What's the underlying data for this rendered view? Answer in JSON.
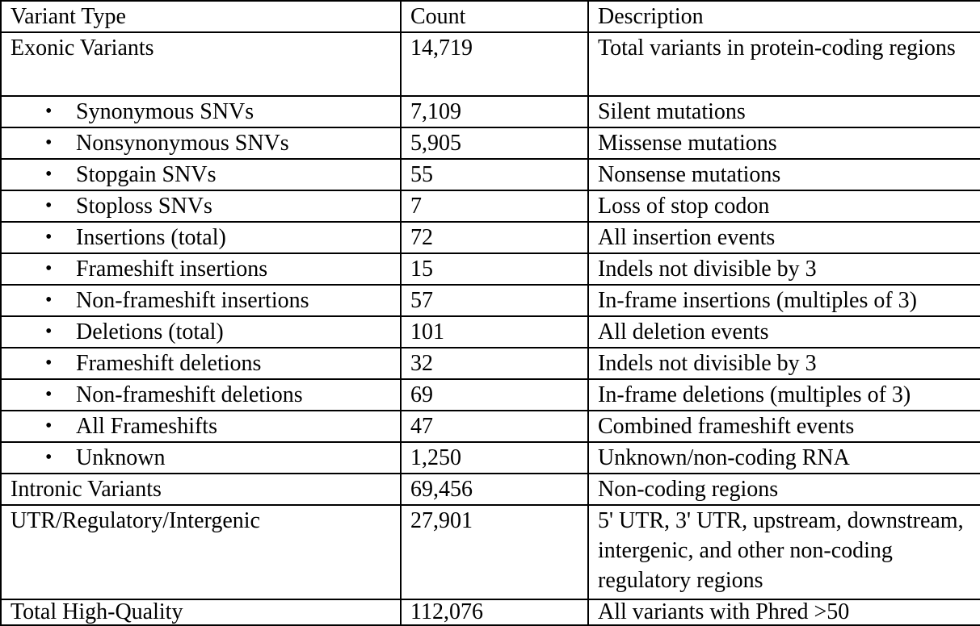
{
  "table": {
    "columns": [
      "Variant Type",
      "Count",
      "Description"
    ],
    "rows": [
      {
        "type": "Exonic Variants",
        "count": "14,719",
        "description": "Total variants in protein-coding\nregions",
        "bold": true,
        "bullet": false,
        "size": "tall"
      },
      {
        "type": "Synonymous SNVs",
        "count": "7,109",
        "description": "Silent mutations",
        "bold": false,
        "bullet": true,
        "size": "std"
      },
      {
        "type": "Nonsynonymous SNVs",
        "count": "5,905",
        "description": "Missense mutations",
        "bold": false,
        "bullet": true,
        "size": "std"
      },
      {
        "type": "Stopgain SNVs",
        "count": "55",
        "description": "Nonsense mutations",
        "bold": false,
        "bullet": true,
        "size": "std"
      },
      {
        "type": "Stoploss SNVs",
        "count": "7",
        "description": "Loss of stop codon",
        "bold": false,
        "bullet": true,
        "size": "std"
      },
      {
        "type": "Insertions (total)",
        "count": "72",
        "description": "All insertion events",
        "bold": true,
        "bullet": true,
        "size": "std"
      },
      {
        "type": "Frameshift insertions",
        "count": "15",
        "description": "Indels not divisible by 3",
        "bold": false,
        "bullet": true,
        "size": "std"
      },
      {
        "type": "Non-frameshift insertions",
        "count": "57",
        "description": "In-frame insertions (multiples of 3)",
        "bold": false,
        "bullet": true,
        "size": "std"
      },
      {
        "type": "Deletions (total)",
        "count": "101",
        "description": "All deletion events",
        "bold": true,
        "bullet": true,
        "size": "std"
      },
      {
        "type": "Frameshift deletions",
        "count": "32",
        "description": "Indels not divisible by 3",
        "bold": false,
        "bullet": true,
        "size": "std"
      },
      {
        "type": "Non-frameshift deletions",
        "count": "69",
        "description": "In-frame deletions (multiples of 3)",
        "bold": false,
        "bullet": true,
        "size": "std"
      },
      {
        "type": "All Frameshifts",
        "count": "47",
        "description": "Combined frameshift events",
        "bold": true,
        "bullet": true,
        "size": "std"
      },
      {
        "type": "Unknown",
        "count": "1,250",
        "description": "Unknown/non-coding RNA",
        "bold": false,
        "bullet": true,
        "size": "std"
      },
      {
        "type": "Intronic Variants",
        "count": "69,456",
        "description": "Non-coding regions",
        "bold": true,
        "bullet": false,
        "size": "std"
      },
      {
        "type": "UTR/Regulatory/Intergenic",
        "count": "27,901",
        "description": "5' UTR, 3' UTR, upstream,\ndownstream, intergenic, and other\nnon-coding regulatory regions",
        "bold": true,
        "bullet": false,
        "size": "utr"
      },
      {
        "type": "Total High-Quality",
        "count": "112,076",
        "description": "All variants with Phred >50",
        "bold": false,
        "bullet": false,
        "size": "total"
      }
    ],
    "bullet_glyph": "•"
  }
}
